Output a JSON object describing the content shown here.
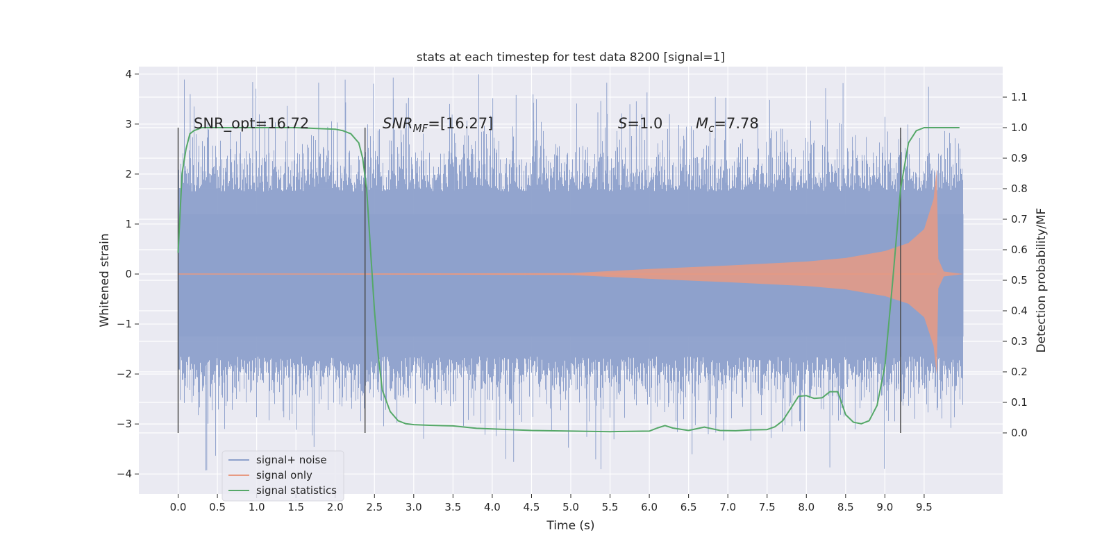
{
  "chart_data": {
    "type": "line",
    "title": "stats at each timestep for test data 8200 [signal=1]",
    "xlabel": "Time (s)",
    "ylabel_left": "Whitened strain",
    "ylabel_right": "Detection probability/MF",
    "xlim": [
      -0.5,
      10.5
    ],
    "ylim_left": [
      -4.4,
      4.15
    ],
    "ylim_right": [
      -0.2,
      1.2
    ],
    "x_ticks": [
      0.0,
      0.5,
      1.0,
      1.5,
      2.0,
      2.5,
      3.0,
      3.5,
      4.0,
      4.5,
      5.0,
      5.5,
      6.0,
      6.5,
      7.0,
      7.5,
      8.0,
      8.5,
      9.0,
      9.5
    ],
    "x_tick_labels": [
      "0.0",
      "0.5",
      "1.0",
      "1.5",
      "2.0",
      "2.5",
      "3.0",
      "3.5",
      "4.0",
      "4.5",
      "5.0",
      "5.5",
      "6.0",
      "6.5",
      "7.0",
      "7.5",
      "8.0",
      "8.5",
      "9.0",
      "9.5"
    ],
    "y_left_ticks": [
      4,
      3,
      2,
      1,
      0,
      -1,
      -2,
      -3,
      -4
    ],
    "y_left_tick_labels": [
      "4",
      "3",
      "2",
      "1",
      "0",
      "−1",
      "−2",
      "−3",
      "−4"
    ],
    "y_right_ticks": [
      1.1,
      1.0,
      0.9,
      0.8,
      0.7,
      0.6,
      0.5,
      0.4,
      0.3,
      0.2,
      0.1,
      0.0
    ],
    "y_right_tick_labels": [
      "1.1",
      "1.0",
      "0.9",
      "0.8",
      "0.7",
      "0.6",
      "0.5",
      "0.4",
      "0.3",
      "0.2",
      "0.1",
      "0.0"
    ],
    "grid": true,
    "legend_position": "lower-left",
    "annotations": {
      "snr_opt": "SNR_opt=16.72",
      "snr_mf_main": "SNR",
      "snr_mf_sub": "MF",
      "snr_mf_value": "=[16.27]",
      "s_main": "S",
      "s_value": "=1.0",
      "mc_main": "M",
      "mc_sub": "c",
      "mc_value": "=7.78"
    },
    "vertical_lines_x": [
      0.0,
      2.38,
      9.2
    ],
    "series": [
      {
        "name": "signal+ noise",
        "color": "#8da0cb",
        "kind": "noisy_strain",
        "x_range": [
          0.0,
          10.0
        ],
        "typical_amplitude": 2.2,
        "peak_amplitude": 3.8
      },
      {
        "name": "signal only",
        "color": "#e79a82",
        "kind": "chirp",
        "x_range": [
          0.0,
          10.0
        ],
        "merger_time": 9.66,
        "envelope": [
          [
            0.0,
            0.0
          ],
          [
            5.0,
            0.02
          ],
          [
            6.0,
            0.1
          ],
          [
            7.0,
            0.17
          ],
          [
            8.0,
            0.25
          ],
          [
            8.5,
            0.32
          ],
          [
            9.0,
            0.46
          ],
          [
            9.3,
            0.62
          ],
          [
            9.5,
            0.9
          ],
          [
            9.62,
            1.5
          ],
          [
            9.66,
            2.1
          ],
          [
            9.68,
            0.3
          ],
          [
            9.75,
            0.05
          ],
          [
            10.0,
            0.0
          ]
        ]
      },
      {
        "name": "signal statistics",
        "color": "#55a868",
        "kind": "probability",
        "x": [
          0.0,
          0.05,
          0.1,
          0.15,
          0.2,
          0.3,
          0.5,
          1.0,
          1.5,
          2.0,
          2.1,
          2.2,
          2.3,
          2.35,
          2.4,
          2.45,
          2.5,
          2.55,
          2.6,
          2.7,
          2.8,
          2.9,
          3.0,
          3.2,
          3.5,
          3.8,
          4.0,
          4.5,
          5.0,
          5.5,
          6.0,
          6.1,
          6.2,
          6.3,
          6.5,
          6.7,
          6.9,
          7.1,
          7.3,
          7.5,
          7.6,
          7.7,
          7.8,
          7.9,
          8.0,
          8.1,
          8.2,
          8.3,
          8.4,
          8.5,
          8.6,
          8.7,
          8.8,
          8.9,
          9.0,
          9.1,
          9.2,
          9.3,
          9.4,
          9.5,
          9.6,
          9.7,
          9.8,
          9.9,
          9.95
        ],
        "y": [
          0.59,
          0.85,
          0.93,
          0.98,
          0.99,
          1.0,
          1.0,
          1.0,
          1.0,
          0.995,
          0.99,
          0.98,
          0.95,
          0.9,
          0.8,
          0.6,
          0.4,
          0.25,
          0.14,
          0.07,
          0.04,
          0.03,
          0.027,
          0.025,
          0.023,
          0.015,
          0.013,
          0.008,
          0.006,
          0.004,
          0.006,
          0.016,
          0.024,
          0.016,
          0.008,
          0.019,
          0.008,
          0.007,
          0.01,
          0.011,
          0.02,
          0.04,
          0.08,
          0.12,
          0.122,
          0.113,
          0.115,
          0.135,
          0.135,
          0.06,
          0.035,
          0.03,
          0.04,
          0.09,
          0.22,
          0.5,
          0.8,
          0.95,
          0.99,
          1.0,
          1.0,
          1.0,
          1.0,
          1.0,
          1.0
        ]
      }
    ]
  }
}
